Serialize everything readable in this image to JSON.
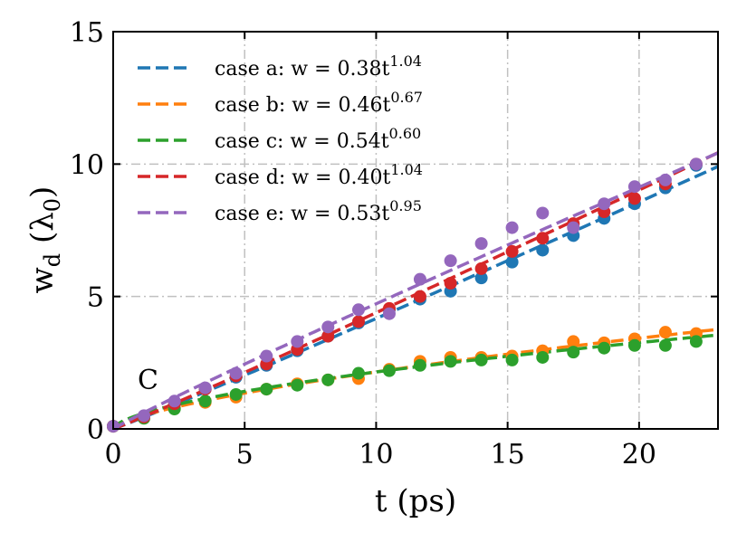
{
  "chart_data": {
    "type": "scatter",
    "title": "",
    "xlabel": "t (ps)",
    "ylabel": "w_d (λ0)",
    "xlim": [
      0,
      23
    ],
    "ylim": [
      0,
      15
    ],
    "xticks": [
      0,
      5,
      10,
      15,
      20
    ],
    "yticks": [
      0,
      5,
      10,
      15
    ],
    "grid": true,
    "legend_position": "top-left",
    "annotation": "C",
    "series": [
      {
        "name": "case a: w = 0.38t^1.04",
        "legend": {
          "prefix": "case a: w = 0.38t",
          "exp": "1.04"
        },
        "color": "#1f77b4",
        "fit": {
          "a": 0.38,
          "b": 1.04
        },
        "x": [
          0.0,
          1.17,
          2.33,
          3.5,
          4.67,
          5.83,
          7.0,
          8.17,
          9.33,
          10.5,
          11.67,
          12.83,
          14.0,
          15.17,
          16.33,
          17.5,
          18.67,
          19.83,
          21.0,
          22.17
        ],
        "y": [
          0.1,
          0.45,
          0.9,
          1.5,
          1.95,
          2.4,
          2.95,
          3.5,
          4.0,
          4.5,
          4.9,
          5.2,
          5.7,
          6.3,
          6.75,
          7.3,
          7.95,
          8.5,
          9.1,
          9.95
        ]
      },
      {
        "name": "case b: w = 0.46t^0.67",
        "legend": {
          "prefix": "case b: w = 0.46t",
          "exp": "0.67"
        },
        "color": "#ff7f0e",
        "fit": {
          "a": 0.46,
          "b": 0.67
        },
        "x": [
          0.0,
          1.17,
          2.33,
          3.5,
          4.67,
          5.83,
          7.0,
          8.17,
          9.33,
          10.5,
          11.67,
          12.83,
          14.0,
          15.17,
          16.33,
          17.5,
          18.67,
          19.83,
          21.0,
          22.17
        ],
        "y": [
          0.1,
          0.45,
          0.8,
          1.0,
          1.2,
          1.5,
          1.7,
          1.85,
          1.9,
          2.25,
          2.55,
          2.7,
          2.7,
          2.75,
          2.95,
          3.3,
          3.25,
          3.4,
          3.65,
          3.6
        ]
      },
      {
        "name": "case c: w = 0.54t^0.60",
        "legend": {
          "prefix": "case c: w = 0.54t",
          "exp": "0.60"
        },
        "color": "#2ca02c",
        "fit": {
          "a": 0.54,
          "b": 0.6
        },
        "x": [
          0.0,
          1.17,
          2.33,
          3.5,
          4.67,
          5.83,
          7.0,
          8.17,
          9.33,
          10.5,
          11.67,
          12.83,
          14.0,
          15.17,
          16.33,
          17.5,
          18.67,
          19.83,
          21.0,
          22.17
        ],
        "y": [
          0.1,
          0.4,
          0.75,
          1.05,
          1.3,
          1.5,
          1.65,
          1.85,
          2.1,
          2.2,
          2.4,
          2.55,
          2.6,
          2.6,
          2.7,
          2.9,
          3.05,
          3.15,
          3.15,
          3.3
        ]
      },
      {
        "name": "case d: w = 0.40t^1.04",
        "legend": {
          "prefix": "case d: w = 0.40t",
          "exp": "1.04"
        },
        "color": "#d62728",
        "fit": {
          "a": 0.4,
          "b": 1.04
        },
        "x": [
          0.0,
          1.17,
          2.33,
          3.5,
          4.67,
          5.83,
          7.0,
          8.17,
          9.33,
          10.5,
          11.67,
          12.83,
          14.0,
          15.17,
          16.33,
          17.5,
          18.67,
          19.83,
          21.0,
          22.17
        ],
        "y": [
          0.1,
          0.45,
          0.95,
          1.5,
          2.0,
          2.45,
          3.0,
          3.5,
          4.05,
          4.55,
          5.0,
          5.5,
          6.05,
          6.7,
          7.2,
          7.75,
          8.2,
          8.7,
          9.25,
          10.0
        ]
      },
      {
        "name": "case e: w = 0.53t^0.95",
        "legend": {
          "prefix": "case e: w = 0.53t",
          "exp": "0.95"
        },
        "color": "#9467bd",
        "fit": {
          "a": 0.53,
          "b": 0.95
        },
        "x": [
          0.0,
          1.17,
          2.33,
          3.5,
          4.67,
          5.83,
          7.0,
          8.17,
          9.33,
          10.5,
          11.67,
          12.83,
          14.0,
          15.17,
          16.33,
          17.5,
          18.67,
          19.83,
          21.0,
          22.17
        ],
        "y": [
          0.1,
          0.5,
          1.05,
          1.55,
          2.1,
          2.75,
          3.3,
          3.85,
          4.5,
          4.35,
          5.65,
          6.35,
          7.0,
          7.6,
          8.15,
          7.6,
          8.5,
          9.15,
          9.4,
          10.0
        ]
      }
    ]
  }
}
